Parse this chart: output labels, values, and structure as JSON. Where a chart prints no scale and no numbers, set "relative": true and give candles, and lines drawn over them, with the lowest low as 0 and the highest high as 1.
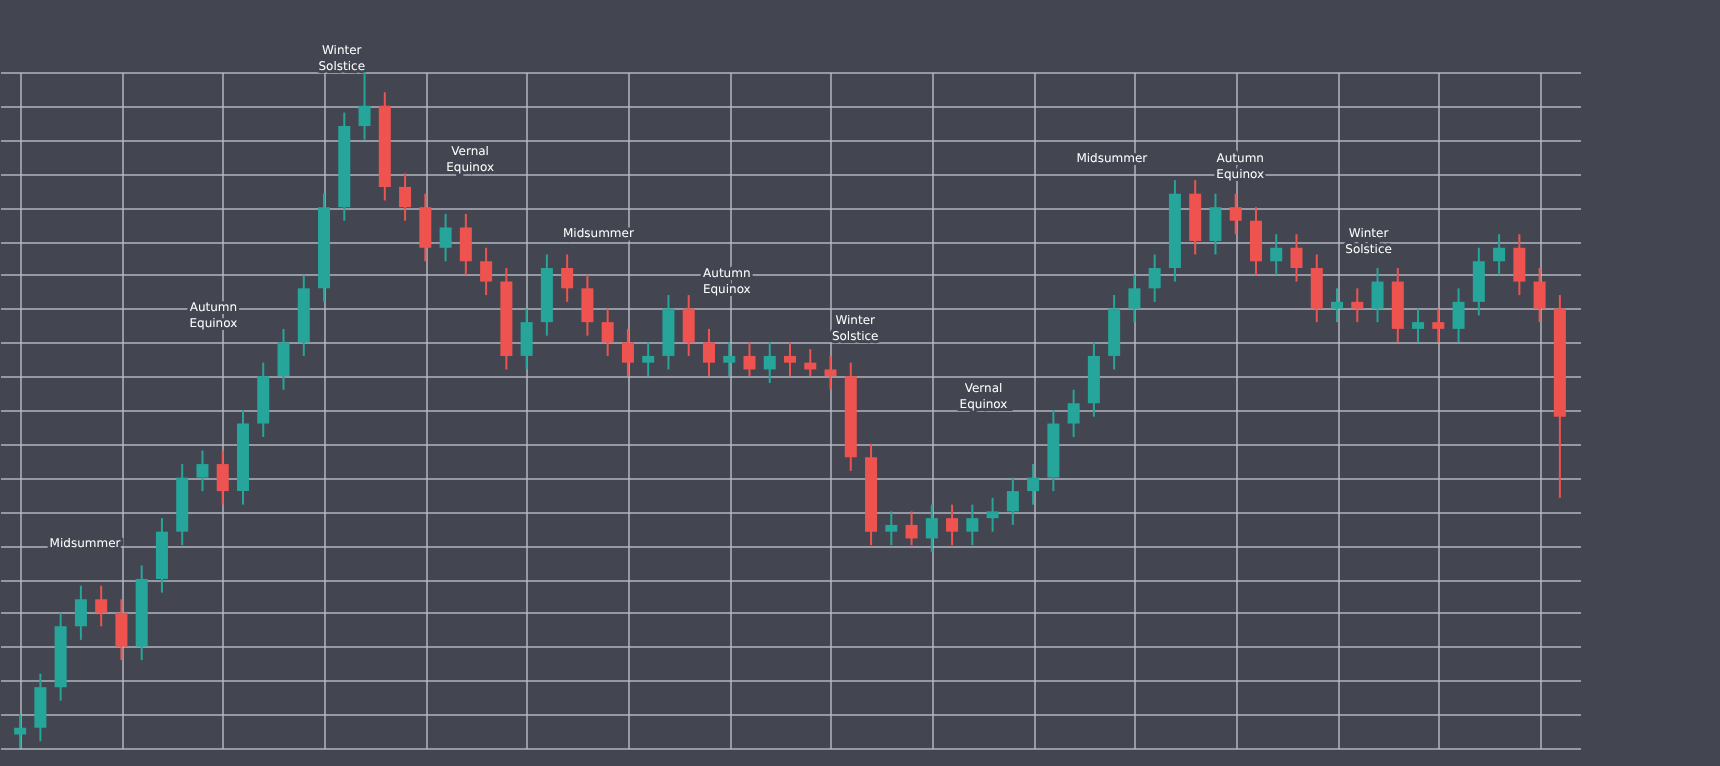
{
  "chart_data": {
    "type": "candlestick",
    "relative": true,
    "grid": true,
    "categories": [
      null,
      null,
      null,
      null,
      null,
      null,
      null,
      null,
      null,
      null,
      null,
      null,
      null,
      null,
      null,
      null,
      null,
      null,
      null,
      null,
      null,
      null,
      null,
      null,
      null,
      null,
      null,
      null,
      null,
      null,
      null,
      null,
      null,
      null,
      null,
      null,
      null,
      null,
      null,
      null,
      null,
      null,
      null,
      null,
      null,
      null,
      null,
      null,
      null,
      null,
      null,
      null,
      null,
      null,
      null,
      null,
      null,
      null,
      null,
      null,
      null,
      null,
      null,
      null,
      null,
      null,
      null,
      null,
      null,
      null,
      null,
      null,
      null,
      null,
      null,
      null,
      null
    ],
    "colors": [
      "#26a69a",
      "#26a69a",
      "#26a69a",
      "#26a69a",
      "#ef5350",
      "#ef5350",
      "#26a69a",
      "#26a69a",
      "#26a69a",
      "#26a69a",
      "#ef5350",
      "#26a69a",
      "#26a69a",
      "#26a69a",
      "#26a69a",
      "#26a69a",
      "#26a69a",
      "#26a69a",
      "#ef5350",
      "#ef5350",
      "#ef5350",
      "#26a69a",
      "#ef5350",
      "#ef5350",
      "#ef5350",
      "#26a69a",
      "#26a69a",
      "#ef5350",
      "#ef5350",
      "#ef5350",
      "#ef5350",
      "#26a69a",
      "#26a69a",
      "#ef5350",
      "#ef5350",
      "#26a69a",
      "#ef5350",
      "#26a69a",
      "#ef5350",
      "#ef5350",
      "#ef5350",
      "#ef5350",
      "#ef5350",
      "#26a69a",
      "#ef5350",
      "#26a69a",
      "#ef5350",
      "#26a69a",
      "#26a69a",
      "#26a69a",
      "#26a69a",
      "#26a69a",
      "#26a69a",
      "#26a69a",
      "#26a69a",
      "#26a69a",
      "#26a69a",
      "#26a69a",
      "#ef5350",
      "#26a69a",
      "#ef5350",
      "#ef5350",
      "#26a69a",
      "#ef5350",
      "#ef5350",
      "#26a69a",
      "#ef5350",
      "#26a69a",
      "#ef5350",
      "#26a69a",
      "#ef5350",
      "#26a69a",
      "#26a69a",
      "#26a69a",
      "#ef5350",
      "#ef5350",
      "#ef5350"
    ],
    "ohlc": [
      [
        0.02,
        0.05,
        0.0,
        0.03
      ],
      [
        0.03,
        0.11,
        0.01,
        0.09
      ],
      [
        0.09,
        0.2,
        0.07,
        0.18
      ],
      [
        0.18,
        0.24,
        0.16,
        0.22
      ],
      [
        0.22,
        0.24,
        0.18,
        0.2
      ],
      [
        0.2,
        0.22,
        0.13,
        0.15
      ],
      [
        0.15,
        0.27,
        0.13,
        0.25
      ],
      [
        0.25,
        0.34,
        0.23,
        0.32
      ],
      [
        0.32,
        0.42,
        0.3,
        0.4
      ],
      [
        0.4,
        0.44,
        0.38,
        0.42
      ],
      [
        0.42,
        0.44,
        0.36,
        0.38
      ],
      [
        0.38,
        0.5,
        0.36,
        0.48
      ],
      [
        0.48,
        0.57,
        0.46,
        0.55
      ],
      [
        0.55,
        0.62,
        0.53,
        0.6
      ],
      [
        0.6,
        0.7,
        0.58,
        0.68
      ],
      [
        0.68,
        0.82,
        0.66,
        0.8
      ],
      [
        0.8,
        0.94,
        0.78,
        0.92
      ],
      [
        0.92,
        1.0,
        0.9,
        0.95
      ],
      [
        0.95,
        0.97,
        0.81,
        0.83
      ],
      [
        0.83,
        0.85,
        0.78,
        0.8
      ],
      [
        0.8,
        0.82,
        0.72,
        0.74
      ],
      [
        0.74,
        0.79,
        0.72,
        0.77
      ],
      [
        0.77,
        0.79,
        0.7,
        0.72
      ],
      [
        0.72,
        0.74,
        0.67,
        0.69
      ],
      [
        0.69,
        0.71,
        0.56,
        0.58
      ],
      [
        0.58,
        0.65,
        0.56,
        0.63
      ],
      [
        0.63,
        0.73,
        0.61,
        0.71
      ],
      [
        0.71,
        0.73,
        0.66,
        0.68
      ],
      [
        0.68,
        0.7,
        0.61,
        0.63
      ],
      [
        0.63,
        0.65,
        0.58,
        0.6
      ],
      [
        0.6,
        0.62,
        0.55,
        0.57
      ],
      [
        0.57,
        0.6,
        0.55,
        0.58
      ],
      [
        0.58,
        0.67,
        0.56,
        0.65
      ],
      [
        0.65,
        0.67,
        0.58,
        0.6
      ],
      [
        0.6,
        0.62,
        0.55,
        0.57
      ],
      [
        0.57,
        0.6,
        0.55,
        0.58
      ],
      [
        0.58,
        0.6,
        0.55,
        0.56
      ],
      [
        0.56,
        0.6,
        0.54,
        0.58
      ],
      [
        0.58,
        0.6,
        0.55,
        0.57
      ],
      [
        0.57,
        0.59,
        0.55,
        0.56
      ],
      [
        0.56,
        0.58,
        0.53,
        0.55
      ],
      [
        0.55,
        0.57,
        0.41,
        0.43
      ],
      [
        0.43,
        0.45,
        0.3,
        0.32
      ],
      [
        0.32,
        0.35,
        0.3,
        0.33
      ],
      [
        0.33,
        0.35,
        0.3,
        0.31
      ],
      [
        0.31,
        0.36,
        0.29,
        0.34
      ],
      [
        0.34,
        0.36,
        0.3,
        0.32
      ],
      [
        0.32,
        0.36,
        0.3,
        0.34
      ],
      [
        0.34,
        0.37,
        0.32,
        0.35
      ],
      [
        0.35,
        0.4,
        0.33,
        0.38
      ],
      [
        0.38,
        0.42,
        0.36,
        0.4
      ],
      [
        0.4,
        0.5,
        0.38,
        0.48
      ],
      [
        0.48,
        0.53,
        0.46,
        0.51
      ],
      [
        0.51,
        0.6,
        0.49,
        0.58
      ],
      [
        0.58,
        0.67,
        0.56,
        0.65
      ],
      [
        0.65,
        0.7,
        0.63,
        0.68
      ],
      [
        0.68,
        0.73,
        0.66,
        0.71
      ],
      [
        0.71,
        0.84,
        0.69,
        0.82
      ],
      [
        0.82,
        0.84,
        0.73,
        0.75
      ],
      [
        0.75,
        0.82,
        0.73,
        0.8
      ],
      [
        0.8,
        0.82,
        0.76,
        0.78
      ],
      [
        0.78,
        0.8,
        0.7,
        0.72
      ],
      [
        0.72,
        0.76,
        0.7,
        0.74
      ],
      [
        0.74,
        0.76,
        0.69,
        0.71
      ],
      [
        0.71,
        0.73,
        0.63,
        0.65
      ],
      [
        0.65,
        0.68,
        0.63,
        0.66
      ],
      [
        0.66,
        0.68,
        0.63,
        0.65
      ],
      [
        0.65,
        0.71,
        0.63,
        0.69
      ],
      [
        0.69,
        0.71,
        0.6,
        0.62
      ],
      [
        0.62,
        0.65,
        0.6,
        0.63
      ],
      [
        0.63,
        0.65,
        0.6,
        0.62
      ],
      [
        0.62,
        0.68,
        0.6,
        0.66
      ],
      [
        0.66,
        0.74,
        0.64,
        0.72
      ],
      [
        0.72,
        0.76,
        0.7,
        0.74
      ],
      [
        0.74,
        0.76,
        0.67,
        0.69
      ],
      [
        0.69,
        0.71,
        0.63,
        0.65
      ],
      [
        0.65,
        0.67,
        0.37,
        0.49
      ]
    ],
    "annotations": [
      "Midsummer",
      "Autumn Equinox",
      "Winter Solstice",
      "Vernal Equinox",
      "Midsummer",
      "Autumn Equinox",
      "Winter Solstice",
      "Vernal Equinox",
      "Midsummer",
      "Autumn Equinox",
      "Winter Solstice"
    ]
  }
}
